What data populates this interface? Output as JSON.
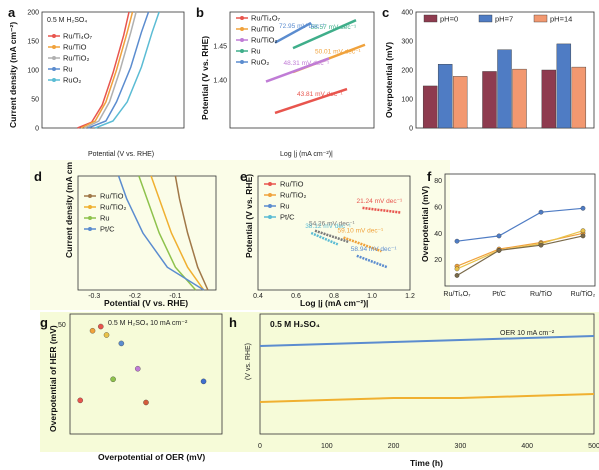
{
  "chart_data": [
    {
      "id": "a",
      "type": "line",
      "panel_label": "a",
      "ylabel": "Current density (mA cm⁻²)",
      "xlabel": "Potential (V vs. RHE)",
      "annotation": "0.5 M H₂SO₄",
      "xlim": [
        1.3,
        1.7
      ],
      "ylim": [
        0,
        200
      ],
      "yticks": [
        "0",
        "50",
        "100",
        "150",
        "200"
      ],
      "series": [
        {
          "name": "Ru/Ti₄O₇",
          "color": "#e8554e",
          "points": [
            [
              1.4,
              0
            ],
            [
              1.44,
              10
            ],
            [
              1.47,
              40
            ],
            [
              1.5,
              95
            ],
            [
              1.53,
              160
            ],
            [
              1.545,
              200
            ]
          ]
        },
        {
          "name": "Ru/TiO",
          "color": "#f0a23c",
          "points": [
            [
              1.41,
              0
            ],
            [
              1.45,
              12
            ],
            [
              1.48,
              45
            ],
            [
              1.51,
              100
            ],
            [
              1.54,
              165
            ],
            [
              1.555,
              200
            ]
          ]
        },
        {
          "name": "Ru/TiO₂",
          "color": "#b0b0b0",
          "points": [
            [
              1.42,
              0
            ],
            [
              1.46,
              12
            ],
            [
              1.49,
              45
            ],
            [
              1.52,
              100
            ],
            [
              1.55,
              165
            ],
            [
              1.565,
              200
            ]
          ]
        },
        {
          "name": "Ru",
          "color": "#5b8ccf",
          "points": [
            [
              1.43,
              0
            ],
            [
              1.48,
              12
            ],
            [
              1.51,
              45
            ],
            [
              1.55,
              105
            ],
            [
              1.58,
              165
            ],
            [
              1.6,
              200
            ]
          ]
        },
        {
          "name": "RuO₂",
          "color": "#5bbcd4",
          "points": [
            [
              1.45,
              0
            ],
            [
              1.5,
              12
            ],
            [
              1.54,
              45
            ],
            [
              1.58,
              105
            ],
            [
              1.61,
              165
            ],
            [
              1.63,
              200
            ]
          ]
        }
      ]
    },
    {
      "id": "b",
      "type": "line",
      "panel_label": "b",
      "ylabel": "Potential (V vs. RHE)",
      "xlabel": "Log |j (mA cm⁻²)|",
      "xlim": [
        0.4,
        2.0
      ],
      "ylim": [
        1.33,
        1.5
      ],
      "yticks": [
        "1.40",
        "1.45"
      ],
      "series": [
        {
          "name": "Ru/Ti₄O₇",
          "color": "#e8554e",
          "slope": "43.81 mV dec⁻¹",
          "points": [
            [
              0.9,
              1.352
            ],
            [
              1.7,
              1.387
            ]
          ]
        },
        {
          "name": "Ru/TiO",
          "color": "#f0a23c",
          "slope": "50.01 mV dec⁻¹",
          "points": [
            [
              1.1,
              1.412
            ],
            [
              1.9,
              1.452
            ]
          ]
        },
        {
          "name": "Ru/TiO₂",
          "color": "#c07cd6",
          "slope": "48.31 mV dec⁻¹",
          "points": [
            [
              0.8,
              1.398
            ],
            [
              1.5,
              1.432
            ]
          ]
        },
        {
          "name": "Ru",
          "color": "#3fae8a",
          "slope": "58.57 mV dec⁻¹",
          "points": [
            [
              1.1,
              1.447
            ],
            [
              1.8,
              1.488
            ]
          ]
        },
        {
          "name": "RuO₂",
          "color": "#5b8ccf",
          "slope": "72.95 mV dec⁻¹",
          "points": [
            [
              0.9,
              1.455
            ],
            [
              1.3,
              1.484
            ]
          ]
        }
      ]
    },
    {
      "id": "c",
      "type": "bar",
      "panel_label": "c",
      "ylabel": "Overpotential (mV)",
      "ylim": [
        0,
        400
      ],
      "yticks": [
        "0",
        "100",
        "200",
        "300",
        "400"
      ],
      "categories": [
        "",
        "",
        ""
      ],
      "series": [
        {
          "name": "pH=0",
          "color": "#8e3b4f",
          "values": [
            145,
            195,
            200
          ]
        },
        {
          "name": "pH=7",
          "color": "#4f7cc4",
          "values": [
            220,
            270,
            290
          ]
        },
        {
          "name": "pH=14",
          "color": "#f29870",
          "values": [
            178,
            203,
            210
          ]
        }
      ]
    },
    {
      "id": "d",
      "type": "line",
      "panel_label": "d",
      "ylabel": "Current density (mA cm",
      "xlabel": "Potential (V vs. RHE)",
      "xlim": [
        -0.34,
        0.0
      ],
      "ylim": [
        -200,
        0
      ],
      "xticks": [
        "-0.3",
        "-0.2",
        "-0.1"
      ],
      "series": [
        {
          "name": "Ru/TiO",
          "color": "#a07848",
          "points": [
            [
              -0.02,
              0
            ],
            [
              -0.045,
              -40
            ],
            [
              -0.07,
              -100
            ],
            [
              -0.09,
              -160
            ],
            [
              -0.1,
              -200
            ]
          ]
        },
        {
          "name": "Ru/TiO₂",
          "color": "#f0b030",
          "points": [
            [
              -0.03,
              0
            ],
            [
              -0.07,
              -40
            ],
            [
              -0.11,
              -100
            ],
            [
              -0.14,
              -160
            ],
            [
              -0.16,
              -200
            ]
          ]
        },
        {
          "name": "Ru",
          "color": "#8ec24c",
          "points": [
            [
              -0.05,
              0
            ],
            [
              -0.1,
              -40
            ],
            [
              -0.14,
              -100
            ],
            [
              -0.17,
              -160
            ],
            [
              -0.19,
              -200
            ]
          ]
        },
        {
          "name": "Pt/C",
          "color": "#5b8ccf",
          "points": [
            [
              -0.03,
              0
            ],
            [
              -0.12,
              -40
            ],
            [
              -0.18,
              -100
            ],
            [
              -0.22,
              -160
            ],
            [
              -0.24,
              -200
            ]
          ]
        }
      ]
    },
    {
      "id": "e",
      "type": "line",
      "panel_label": "e",
      "ylabel": "Potential (V vs. RHE)",
      "xlabel": "Log |j (mA cm⁻²)|",
      "xlim": [
        0.4,
        1.2
      ],
      "xticks": [
        "0.4",
        "0.6",
        "0.8",
        "1.0",
        "1.2"
      ],
      "series": [
        {
          "name": "Ru/TiO",
          "color": "#e8554e",
          "slope": "21.24 mV dec⁻¹",
          "points": [
            [
              0.95,
              0.72
            ],
            [
              1.15,
              0.68
            ]
          ]
        },
        {
          "name": "Ru/TiO₂",
          "color": "#f0a23c",
          "slope": "59.10 mV dec⁻¹",
          "points": [
            [
              0.85,
              0.46
            ],
            [
              1.05,
              0.34
            ]
          ]
        },
        {
          "name": "Ru",
          "color": "#5b8ccf",
          "slope": "58.94 mV dec⁻¹",
          "points": [
            [
              0.92,
              0.3
            ],
            [
              1.08,
              0.2
            ]
          ]
        },
        {
          "name": "Pt/C",
          "color": "#5bbcd4",
          "slope": "38.12 mV dec⁻¹",
          "points": [
            [
              0.68,
              0.5
            ],
            [
              0.82,
              0.4
            ]
          ]
        },
        {
          "name": "",
          "color": "#7b7b7b",
          "slope": "54.26 mV dec⁻¹",
          "points": [
            [
              0.7,
              0.52
            ],
            [
              0.88,
              0.42
            ]
          ]
        }
      ]
    },
    {
      "id": "f",
      "type": "line",
      "panel_label": "f",
      "ylabel": "Overpotential (mV)",
      "ylim": [
        0,
        85
      ],
      "yticks": [
        "20",
        "40",
        "60",
        "80"
      ],
      "categories": [
        "Ru/Ti₄O₇",
        "Pt/C",
        "Ru/TiO",
        "Ru/TiO₂"
      ],
      "series": [
        {
          "name": "",
          "color": "#4f7cc4",
          "values": [
            34,
            38,
            56,
            59
          ]
        },
        {
          "name": "",
          "color": "#f0a23c",
          "values": [
            15,
            28,
            33,
            40
          ]
        },
        {
          "name": "",
          "color": "#e9c24a",
          "values": [
            13,
            27,
            32,
            42
          ]
        },
        {
          "name": "",
          "color": "#7a6a4a",
          "values": [
            8,
            27,
            31,
            38
          ]
        }
      ]
    },
    {
      "id": "g",
      "type": "scatter",
      "panel_label": "g",
      "ylabel": "Overpotential of HER (mV)",
      "xlabel": "Overpotential of OER (mV)",
      "annotation": "0.5 M H₂SO₄  10 mA cm⁻²",
      "yticks": [
        "50"
      ],
      "points": [
        {
          "x": 255,
          "y": 50,
          "color": "#e8554e"
        },
        {
          "x": 245,
          "y": 48,
          "color": "#f0a23c"
        },
        {
          "x": 262,
          "y": 46,
          "color": "#e9c24a"
        },
        {
          "x": 280,
          "y": 42,
          "color": "#5b8ccf"
        },
        {
          "x": 300,
          "y": 30,
          "color": "#c07cd6"
        },
        {
          "x": 270,
          "y": 25,
          "color": "#8ec24c"
        },
        {
          "x": 230,
          "y": 15,
          "color": "#e8554e"
        },
        {
          "x": 310,
          "y": 14,
          "color": "#d45c3c"
        },
        {
          "x": 380,
          "y": 24,
          "color": "#3f6fd0"
        }
      ]
    },
    {
      "id": "h",
      "type": "line",
      "panel_label": "h",
      "ylabel": "(V vs. RHE)",
      "xlabel": "Time (h)",
      "annotation": "0.5 M H₂SO₄",
      "xlim": [
        0,
        500
      ],
      "xticks": [
        "0",
        "100",
        "200",
        "300",
        "400",
        "500"
      ],
      "series": [
        {
          "name": "OER 10 mA cm⁻²",
          "color": "#5b8ccf",
          "points": [
            [
              0,
              1.52
            ],
            [
              100,
              1.525
            ],
            [
              200,
              1.53
            ],
            [
              300,
              1.535
            ],
            [
              400,
              1.54
            ],
            [
              500,
              1.545
            ]
          ]
        },
        {
          "name": "",
          "color": "#f0b030",
          "points": [
            [
              0,
              1.38
            ],
            [
              100,
              1.385
            ],
            [
              200,
              1.39
            ],
            [
              300,
              1.39
            ],
            [
              400,
              1.395
            ],
            [
              500,
              1.4
            ]
          ]
        }
      ]
    }
  ]
}
